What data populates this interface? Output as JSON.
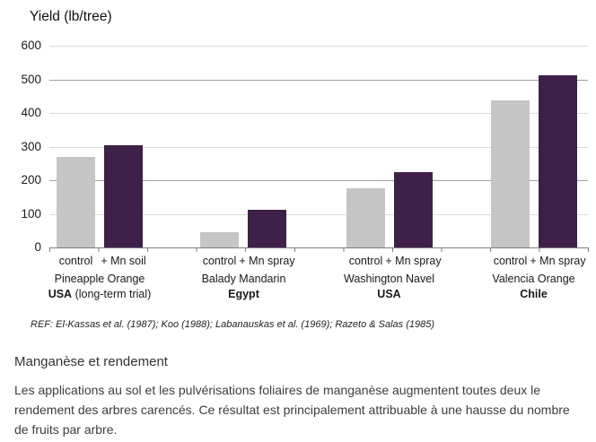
{
  "chart_data": {
    "type": "bar",
    "title": "Yield (lb/tree)",
    "ylabel": "Yield (lb/tree)",
    "xlabel": "",
    "ylim": [
      0,
      600
    ],
    "y_ticks": [
      600,
      500,
      400,
      300,
      200,
      100,
      0
    ],
    "grid": true,
    "legend": false,
    "categories": [
      "Pineapple Orange",
      "Balady Mandarin",
      "Washington Navel",
      "Valencia Orange"
    ],
    "category_sublabels": [
      {
        "bold": "USA",
        "rest": " (long-term trial)"
      },
      {
        "bold": "Egypt",
        "rest": ""
      },
      {
        "bold": "USA",
        "rest": ""
      },
      {
        "bold": "Chile",
        "rest": ""
      }
    ],
    "bar_labels": [
      [
        "control",
        "+ Mn soil"
      ],
      [
        "control",
        "+ Mn spray"
      ],
      [
        "control",
        "+ Mn spray"
      ],
      [
        "control",
        "+ Mn spray"
      ]
    ],
    "series": [
      {
        "name": "control",
        "color": "#c6c6c6",
        "values": [
          270,
          45,
          175,
          437
        ]
      },
      {
        "name": "+ Mn (soil/spray)",
        "color": "#3e2049",
        "values": [
          305,
          113,
          225,
          512
        ]
      }
    ],
    "colors": {
      "grid_light": "#dcdcdc",
      "grid_dark": "#a0a0a0",
      "axis": "#7f7f7f"
    },
    "reference": "REF: El-Kassas et al. (1987); Koo (1988); Labanauskas et al. (1969); Razeto & Salas (1985)"
  },
  "text": {
    "heading": "Manganèse et rendement",
    "body": "Les applications au sol et les pulvérisations foliaires de manganèse augmentent toutes deux le rendement des arbres carencés. Ce résultat est principalement attribuable à une hausse du nombre de fruits par arbre."
  }
}
